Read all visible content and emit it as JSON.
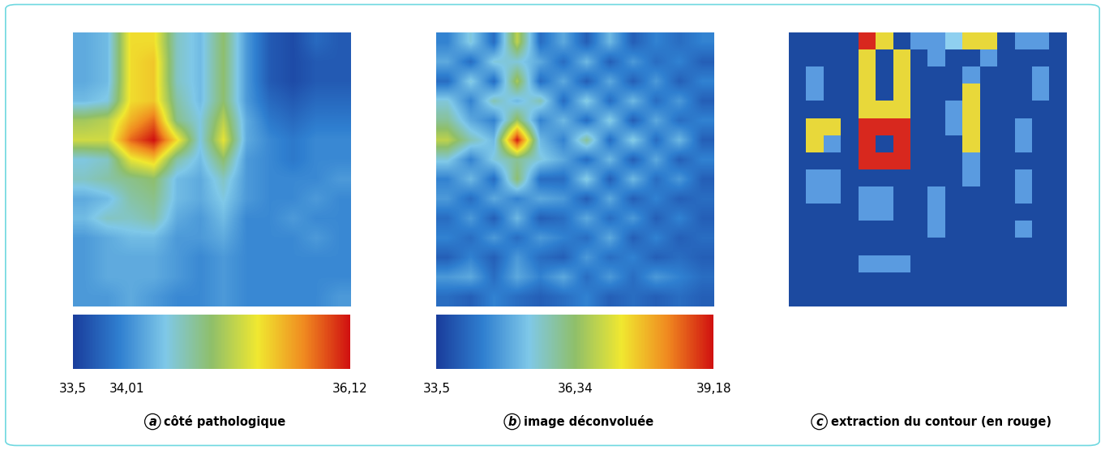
{
  "chart_data": [
    {
      "type": "heatmap",
      "label": "a",
      "caption": "côté pathologique",
      "tick_labels": false,
      "cells": [
        [
          34.2,
          34.3,
          35.3,
          35.3,
          34.5,
          34.3,
          34.8,
          34.1,
          33.7,
          33.6,
          33.8,
          33.7
        ],
        [
          34.2,
          34.3,
          35.3,
          35.4,
          34.5,
          34.3,
          34.8,
          34.1,
          33.7,
          33.6,
          33.7,
          33.7
        ],
        [
          34.2,
          34.3,
          35.3,
          35.4,
          34.5,
          34.3,
          34.8,
          34.1,
          33.7,
          33.6,
          33.7,
          33.7
        ],
        [
          34.3,
          34.4,
          35.3,
          35.4,
          34.6,
          34.3,
          34.8,
          34.1,
          33.8,
          33.7,
          33.8,
          33.8
        ],
        [
          34.9,
          35.0,
          35.5,
          35.8,
          34.7,
          34.4,
          35.0,
          34.2,
          33.9,
          33.8,
          33.9,
          33.9
        ],
        [
          35.1,
          35.1,
          35.8,
          36.12,
          35.3,
          34.4,
          35.2,
          34.2,
          34.0,
          33.9,
          34.0,
          34.0
        ],
        [
          34.4,
          34.5,
          35.2,
          35.4,
          34.6,
          34.3,
          34.8,
          34.1,
          34.0,
          33.9,
          34.0,
          34.0
        ],
        [
          34.5,
          34.6,
          34.7,
          34.8,
          34.3,
          34.2,
          34.5,
          34.1,
          34.0,
          34.0,
          34.0,
          34.1
        ],
        [
          34.2,
          34.3,
          34.6,
          34.7,
          34.3,
          34.2,
          34.4,
          34.1,
          34.0,
          34.0,
          34.1,
          34.0
        ],
        [
          34.3,
          34.5,
          34.5,
          34.6,
          34.2,
          34.1,
          34.3,
          34.0,
          34.0,
          34.1,
          34.0,
          34.0
        ],
        [
          34.1,
          34.2,
          34.3,
          34.3,
          34.1,
          34.1,
          34.2,
          34.0,
          34.0,
          34.0,
          34.1,
          34.0
        ],
        [
          34.1,
          34.2,
          34.2,
          34.2,
          34.1,
          34.0,
          34.1,
          34.0,
          34.0,
          34.0,
          34.0,
          34.0
        ],
        [
          34.1,
          34.2,
          34.2,
          34.2,
          34.1,
          34.0,
          34.1,
          34.0,
          34.0,
          34.0,
          34.0,
          34.0
        ],
        [
          34.1,
          34.1,
          34.2,
          34.1,
          34.0,
          34.0,
          34.1,
          34.0,
          34.0,
          34.0,
          34.0,
          34.1
        ]
      ],
      "color_range": [
        33.5,
        36.12
      ],
      "color_ticks": [
        {
          "value": 33.5,
          "label": "33,5"
        },
        {
          "value": 34.01,
          "label": "34,01"
        },
        {
          "value": 36.12,
          "label": "36,12"
        }
      ]
    },
    {
      "type": "heatmap",
      "label": "b",
      "caption": "image déconvoluée",
      "tick_labels": false,
      "cells": [
        [
          34.5,
          35.5,
          34.2,
          36.8,
          34.2,
          35.0,
          34.0,
          35.2,
          34.0,
          34.5,
          34.2,
          34.5
        ],
        [
          35.0,
          34.2,
          35.5,
          35.5,
          35.0,
          34.2,
          35.2,
          34.0,
          34.8,
          34.2,
          34.5,
          34.0
        ],
        [
          34.2,
          35.5,
          34.2,
          36.6,
          34.2,
          35.0,
          34.0,
          35.0,
          34.0,
          34.8,
          34.0,
          34.5
        ],
        [
          35.5,
          34.5,
          35.8,
          35.2,
          35.8,
          34.2,
          35.5,
          34.2,
          35.2,
          34.2,
          34.8,
          34.0
        ],
        [
          36.0,
          35.0,
          34.5,
          36.5,
          34.5,
          35.2,
          34.2,
          35.5,
          34.0,
          35.0,
          34.2,
          34.5
        ],
        [
          36.8,
          35.8,
          35.2,
          39.1,
          35.2,
          34.5,
          36.0,
          34.2,
          35.5,
          34.2,
          35.2,
          34.0
        ],
        [
          35.5,
          34.5,
          35.5,
          36.0,
          35.5,
          35.0,
          34.2,
          35.2,
          34.0,
          35.0,
          34.0,
          34.5
        ],
        [
          34.5,
          35.2,
          34.2,
          36.3,
          34.2,
          34.2,
          35.5,
          34.0,
          35.2,
          34.2,
          34.8,
          34.0
        ],
        [
          34.8,
          34.2,
          35.0,
          34.5,
          35.0,
          34.8,
          34.0,
          35.0,
          34.0,
          34.5,
          34.0,
          34.2
        ],
        [
          34.2,
          34.8,
          34.0,
          35.2,
          34.0,
          34.2,
          35.0,
          34.2,
          34.8,
          34.0,
          34.5,
          34.0
        ],
        [
          34.5,
          34.2,
          34.8,
          34.2,
          34.8,
          34.5,
          34.2,
          35.0,
          34.0,
          34.5,
          34.0,
          34.2
        ],
        [
          34.0,
          34.5,
          34.0,
          34.8,
          34.2,
          34.0,
          34.8,
          34.2,
          34.5,
          34.0,
          34.2,
          34.0
        ],
        [
          34.8,
          35.0,
          34.2,
          35.0,
          34.5,
          35.0,
          34.2,
          34.8,
          34.2,
          34.8,
          34.5,
          34.2
        ],
        [
          34.2,
          34.0,
          34.5,
          34.2,
          34.0,
          34.2,
          34.5,
          34.0,
          34.2,
          34.0,
          34.2,
          34.0
        ]
      ],
      "color_range": [
        33.5,
        39.18
      ],
      "color_ticks": [
        {
          "value": 33.5,
          "label": "33,5"
        },
        {
          "value": 36.34,
          "label": "36,34"
        },
        {
          "value": 39.18,
          "label": "39,18"
        }
      ]
    },
    {
      "type": "heatmap",
      "label": "c",
      "caption": "extraction du contour (en rouge)",
      "tick_labels": false,
      "cells": [
        [
          0,
          0,
          0,
          0,
          4,
          3,
          0,
          1,
          1,
          2,
          3,
          3,
          0,
          1,
          1,
          0
        ],
        [
          0,
          0,
          0,
          0,
          3,
          0,
          3,
          0,
          1,
          0,
          0,
          1,
          0,
          0,
          0,
          0
        ],
        [
          0,
          1,
          0,
          0,
          3,
          0,
          3,
          0,
          0,
          0,
          1,
          0,
          0,
          0,
          1,
          0
        ],
        [
          0,
          1,
          0,
          0,
          3,
          0,
          3,
          0,
          0,
          0,
          3,
          0,
          0,
          0,
          1,
          0
        ],
        [
          0,
          0,
          0,
          0,
          3,
          3,
          3,
          0,
          0,
          1,
          3,
          0,
          0,
          0,
          0,
          0
        ],
        [
          0,
          3,
          3,
          0,
          4,
          4,
          4,
          0,
          0,
          1,
          3,
          0,
          0,
          1,
          0,
          0
        ],
        [
          0,
          3,
          1,
          0,
          4,
          0,
          4,
          0,
          0,
          0,
          3,
          0,
          0,
          1,
          0,
          0
        ],
        [
          0,
          0,
          0,
          0,
          4,
          4,
          4,
          0,
          0,
          0,
          1,
          0,
          0,
          0,
          0,
          0
        ],
        [
          0,
          1,
          1,
          0,
          0,
          0,
          0,
          0,
          0,
          0,
          1,
          0,
          0,
          1,
          0,
          0
        ],
        [
          0,
          1,
          1,
          0,
          1,
          1,
          0,
          0,
          1,
          0,
          0,
          0,
          0,
          1,
          0,
          0
        ],
        [
          0,
          0,
          0,
          0,
          1,
          1,
          0,
          0,
          1,
          0,
          0,
          0,
          0,
          0,
          0,
          0
        ],
        [
          0,
          0,
          0,
          0,
          0,
          0,
          0,
          0,
          1,
          0,
          0,
          0,
          0,
          1,
          0,
          0
        ],
        [
          0,
          0,
          0,
          0,
          0,
          0,
          0,
          0,
          0,
          0,
          0,
          0,
          0,
          0,
          0,
          0
        ],
        [
          0,
          0,
          0,
          0,
          1,
          1,
          1,
          0,
          0,
          0,
          0,
          0,
          0,
          0,
          0,
          0
        ],
        [
          0,
          0,
          0,
          0,
          0,
          0,
          0,
          0,
          0,
          0,
          0,
          0,
          0,
          0,
          0,
          0
        ],
        [
          0,
          0,
          0,
          0,
          0,
          0,
          0,
          0,
          0,
          0,
          0,
          0,
          0,
          0,
          0,
          0
        ]
      ]
    }
  ]
}
